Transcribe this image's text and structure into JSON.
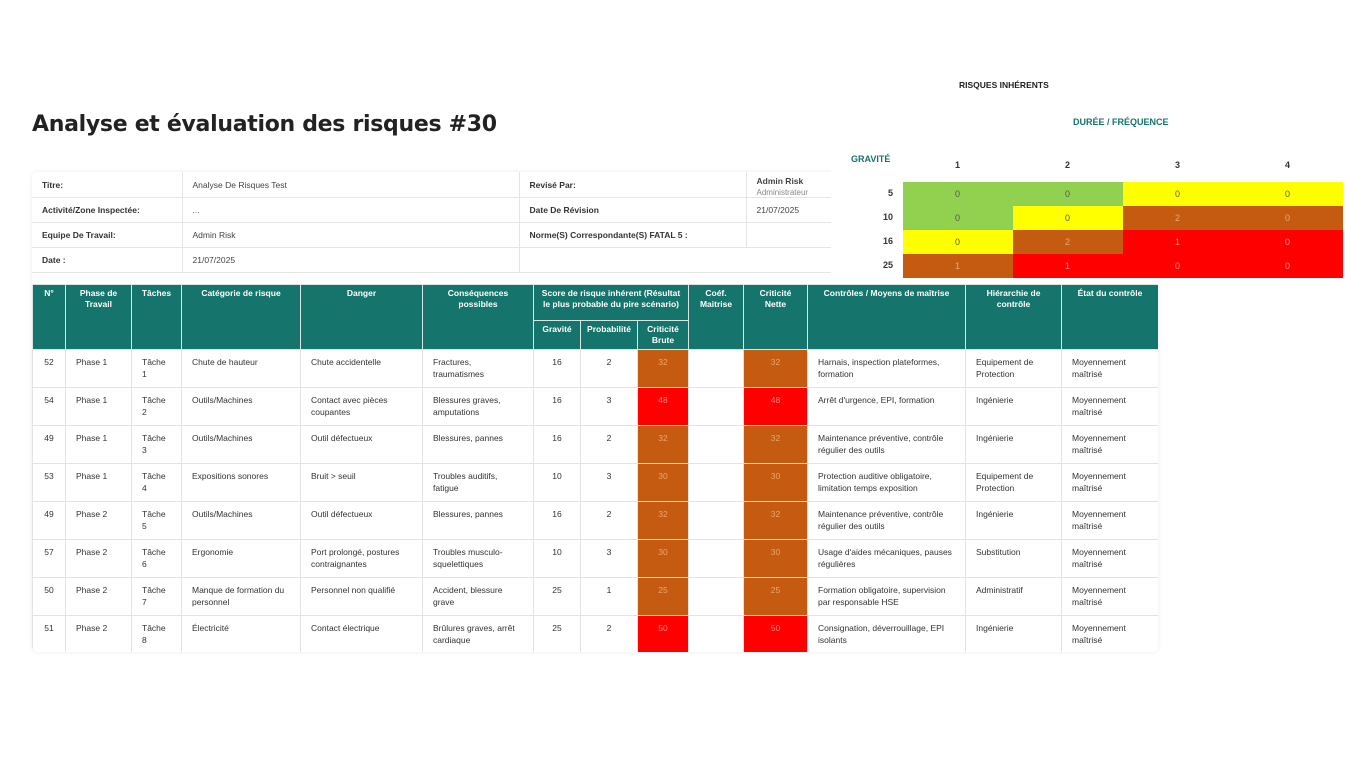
{
  "page": {
    "title": "Analyse et évaluation des risques #30"
  },
  "meta": {
    "titre_label": "Titre:",
    "titre_value": "Analyse De Risques Test",
    "revise_label": "Revisé Par:",
    "revise_name": "Admin Risk",
    "revise_role": "Administrateur",
    "activite_label": "Activité/Zone Inspectée:",
    "activite_value": "...",
    "date_revision_label": "Date De Révision",
    "date_revision_value": "21/07/2025",
    "equipe_label": "Equipe De Travail:",
    "equipe_value": "Admin Risk",
    "norme_label": "Norme(S) Correspondante(S) FATAL 5 :",
    "date_label": "Date :",
    "date_value": "21/07/2025"
  },
  "table": {
    "headers": {
      "num": "N°",
      "phase": "Phase de Travail",
      "taches": "Tâches",
      "categorie": "Catégorie de risque",
      "danger": "Danger",
      "consequences": "Conséquences possibles",
      "score": "Score de risque inhérent (Résultat le plus probable du pire scénario)",
      "gravite": "Gravité",
      "probabilite": "Probabilité",
      "criticite_brute": "Criticité Brute",
      "coef": "Coéf. Maitrise",
      "criticite_nette": "Criticité Nette",
      "controles": "Contrôles / Moyens de maîtrise",
      "hierarchie": "Hiérarchie de contrôle",
      "etat": "État du contrôle"
    },
    "rows": [
      {
        "num": "52",
        "phase": "Phase 1",
        "tache": "Tâche 1",
        "categorie": "Chute de hauteur",
        "danger": "Chute accidentelle",
        "consequences": "Fractures, traumatismes",
        "gravite": "16",
        "probabilite": "2",
        "brute": "32",
        "coef": "",
        "nette": "32",
        "controles": "Harnais, inspection plateformes, formation",
        "hierarchie": "Equipement de Protection",
        "etat": "Moyennement maîtrisé"
      },
      {
        "num": "54",
        "phase": "Phase 1",
        "tache": "Tâche 2",
        "categorie": "Outils/Machines",
        "danger": "Contact avec pièces coupantes",
        "consequences": "Blessures graves, amputations",
        "gravite": "16",
        "probabilite": "3",
        "brute": "48",
        "coef": "",
        "nette": "48",
        "controles": "Arrêt d'urgence, EPI, formation",
        "hierarchie": "Ingénierie",
        "etat": "Moyennement maîtrisé"
      },
      {
        "num": "49",
        "phase": "Phase 1",
        "tache": "Tâche 3",
        "categorie": "Outils/Machines",
        "danger": "Outil défectueux",
        "consequences": "Blessures, pannes",
        "gravite": "16",
        "probabilite": "2",
        "brute": "32",
        "coef": "",
        "nette": "32",
        "controles": "Maintenance préventive, contrôle régulier des outils",
        "hierarchie": "Ingénierie",
        "etat": "Moyennement maîtrisé"
      },
      {
        "num": "53",
        "phase": "Phase 1",
        "tache": "Tâche 4",
        "categorie": "Expositions sonores",
        "danger": "Bruit > seuil",
        "consequences": "Troubles auditifs, fatigue",
        "gravite": "10",
        "probabilite": "3",
        "brute": "30",
        "coef": "",
        "nette": "30",
        "controles": "Protection auditive obligatoire, limitation temps exposition",
        "hierarchie": "Equipement de Protection",
        "etat": "Moyennement maîtrisé"
      },
      {
        "num": "49",
        "phase": "Phase 2",
        "tache": "Tâche 5",
        "categorie": "Outils/Machines",
        "danger": "Outil défectueux",
        "consequences": "Blessures, pannes",
        "gravite": "16",
        "probabilite": "2",
        "brute": "32",
        "coef": "",
        "nette": "32",
        "controles": "Maintenance préventive, contrôle régulier des outils",
        "hierarchie": "Ingénierie",
        "etat": "Moyennement maîtrisé"
      },
      {
        "num": "57",
        "phase": "Phase 2",
        "tache": "Tâche 6",
        "categorie": "Ergonomie",
        "danger": "Port prolongé, postures contraignantes",
        "consequences": "Troubles musculo-squelettiques",
        "gravite": "10",
        "probabilite": "3",
        "brute": "30",
        "coef": "",
        "nette": "30",
        "controles": "Usage d'aides mécaniques, pauses régulières",
        "hierarchie": "Substitution",
        "etat": "Moyennement maîtrisé"
      },
      {
        "num": "50",
        "phase": "Phase 2",
        "tache": "Tâche 7",
        "categorie": "Manque de formation du personnel",
        "danger": "Personnel non qualifié",
        "consequences": "Accident, blessure grave",
        "gravite": "25",
        "probabilite": "1",
        "brute": "25",
        "coef": "",
        "nette": "25",
        "controles": "Formation obligatoire, supervision par responsable HSE",
        "hierarchie": "Administratif",
        "etat": "Moyennement maîtrisé"
      },
      {
        "num": "51",
        "phase": "Phase 2",
        "tache": "Tâche 8",
        "categorie": "Électricité",
        "danger": "Contact électrique",
        "consequences": "Brûlures graves, arrêt cardiaque",
        "gravite": "25",
        "probabilite": "2",
        "brute": "50",
        "coef": "",
        "nette": "50",
        "controles": "Consignation, déverrouillage, EPI isolants",
        "hierarchie": "Ingénierie",
        "etat": "Moyennement maîtrisé"
      }
    ]
  },
  "matrix": {
    "title": "RISQUES INHÉRENTS",
    "x_label": "DURÉE / FRÉQUENCE",
    "y_label": "GRAVITÉ",
    "columns": [
      "1",
      "2",
      "3",
      "4"
    ],
    "rows": [
      {
        "label": "5",
        "cells": [
          {
            "v": "0",
            "c": "#92d050"
          },
          {
            "v": "0",
            "c": "#92d050"
          },
          {
            "v": "0",
            "c": "#ffff00"
          },
          {
            "v": "0",
            "c": "#ffff00"
          }
        ]
      },
      {
        "label": "10",
        "cells": [
          {
            "v": "0",
            "c": "#92d050"
          },
          {
            "v": "0",
            "c": "#ffff00"
          },
          {
            "v": "2",
            "c": "#c55a11"
          },
          {
            "v": "0",
            "c": "#c55a11"
          }
        ]
      },
      {
        "label": "16",
        "cells": [
          {
            "v": "0",
            "c": "#ffff00"
          },
          {
            "v": "2",
            "c": "#c55a11"
          },
          {
            "v": "1",
            "c": "#ff0000"
          },
          {
            "v": "0",
            "c": "#ff0000"
          }
        ]
      },
      {
        "label": "25",
        "cells": [
          {
            "v": "1",
            "c": "#c55a11"
          },
          {
            "v": "1",
            "c": "#ff0000"
          },
          {
            "v": "0",
            "c": "#ff0000"
          },
          {
            "v": "0",
            "c": "#ff0000"
          }
        ]
      }
    ]
  },
  "colors": {
    "header_teal": "#15746b",
    "orange": "#c55a11",
    "red": "#ff0000",
    "yellow": "#ffff00",
    "green": "#92d050"
  }
}
